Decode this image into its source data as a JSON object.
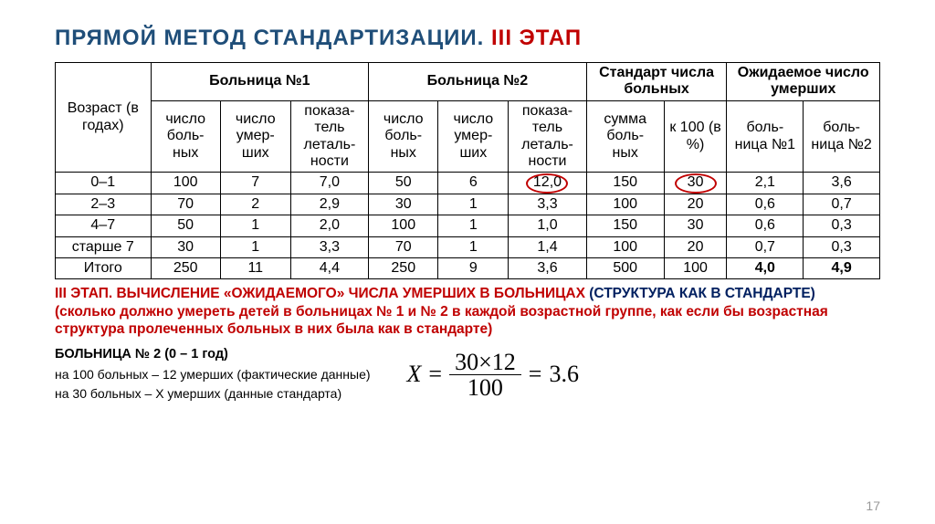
{
  "title": {
    "main": "ПРЯМОЙ МЕТОД СТАНДАРТИЗАЦИИ.",
    "stage": "III ЭТАП"
  },
  "table": {
    "header_groups": {
      "age": "Возраст (в годах)",
      "h1": "Больница №1",
      "h2": "Больница №2",
      "std": "Стандарт числа больных",
      "expected": "Ожидаемое число умерших"
    },
    "sub": {
      "patients": "число боль-\nных",
      "deaths": "число умер-\nших",
      "lethal": "показа-\nтель леталь-\nности",
      "sum": "сумма боль-\nных",
      "k100": "к 100 (в %)",
      "hA": "боль-\nница №1",
      "hB": "боль-\nница №2"
    },
    "rows": [
      {
        "age": "0–1",
        "h1": [
          "100",
          "7",
          "7,0"
        ],
        "h2": [
          "50",
          "6",
          "12,0"
        ],
        "std": [
          "150",
          "30"
        ],
        "exp": [
          "2,1",
          "3,6"
        ],
        "circle_h2_lethal": true,
        "circle_k100": true
      },
      {
        "age": "2–3",
        "h1": [
          "70",
          "2",
          "2,9"
        ],
        "h2": [
          "30",
          "1",
          "3,3"
        ],
        "std": [
          "100",
          "20"
        ],
        "exp": [
          "0,6",
          "0,7"
        ]
      },
      {
        "age": "4–7",
        "h1": [
          "50",
          "1",
          "2,0"
        ],
        "h2": [
          "100",
          "1",
          "1,0"
        ],
        "std": [
          "150",
          "30"
        ],
        "exp": [
          "0,6",
          "0,3"
        ]
      },
      {
        "age": "старше 7",
        "h1": [
          "30",
          "1",
          "3,3"
        ],
        "h2": [
          "70",
          "1",
          "1,4"
        ],
        "std": [
          "100",
          "20"
        ],
        "exp": [
          "0,7",
          "0,3"
        ]
      }
    ],
    "total": {
      "label": "Итого",
      "h1": [
        "250",
        "11",
        "4,4"
      ],
      "h2": [
        "250",
        "9",
        "3,6"
      ],
      "std": [
        "500",
        "100"
      ],
      "exp": [
        "4,0",
        "4,9"
      ]
    }
  },
  "para": {
    "l1a": "III ЭТАП. ВЫЧИСЛЕНИЕ «ОЖИДАЕМОГО» ЧИСЛА УМЕРШИХ В БОЛЬНИЦАХ ",
    "l1b": "(СТРУКТУРА КАК В СТАНДАРТЕ)",
    "l2": "(сколько должно умереть детей в больницах № 1 и № 2 в каждой возрастной группе, как если бы возрастная структура пролеченных больных в них была как в стандарте)"
  },
  "calc": {
    "hdr": "БОЛЬНИЦА № 2 (0 – 1 год)",
    "line1": "на 100 больных – 12 умерших  (фактические данные)",
    "line2": "на 30 больных – X умерших (данные стандарта)"
  },
  "formula": {
    "var": "X",
    "eq1": "=",
    "num": "30×12",
    "den": "100",
    "eq2": "=",
    "result": "3.6"
  },
  "page": "17",
  "colors": {
    "title_blue": "#1f4e79",
    "accent_red": "#c00000",
    "text_blue": "#002060"
  }
}
